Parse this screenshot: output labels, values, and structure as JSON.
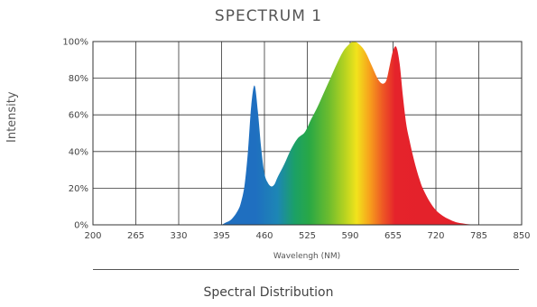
{
  "chart_data": {
    "type": "area",
    "title": "SPECTRUM 1",
    "xlabel": "Wavelengh (NM)",
    "ylabel": "Intensity",
    "xlim": [
      200,
      850
    ],
    "ylim": [
      0,
      100
    ],
    "x_ticks": [
      "200",
      "265",
      "330",
      "395",
      "460",
      "525",
      "590",
      "655",
      "720",
      "785",
      "850"
    ],
    "y_ticks": [
      "0%",
      "20%",
      "40%",
      "60%",
      "80%",
      "100%"
    ],
    "grid": true,
    "series": [
      {
        "x": [
          395,
          400,
          410,
          420,
          425,
          430,
          435,
          440,
          445,
          450,
          455,
          460,
          465,
          470,
          475,
          480,
          490,
          500,
          510,
          520,
          525,
          530,
          540,
          550,
          560,
          570,
          580,
          590,
          595,
          600,
          605,
          610,
          615,
          620,
          625,
          630,
          635,
          640,
          645,
          650,
          655,
          660,
          665,
          670,
          675,
          680,
          685,
          690,
          695,
          700,
          710,
          720,
          730,
          740,
          750,
          760,
          770,
          780,
          790
        ],
        "y": [
          0,
          1,
          3,
          8,
          13,
          22,
          40,
          65,
          76,
          62,
          42,
          28,
          23,
          21,
          22,
          26,
          33,
          41,
          47,
          50,
          53,
          57,
          64,
          72,
          80,
          88,
          95,
          99,
          100,
          99.5,
          98,
          96,
          93,
          89,
          85,
          81,
          78,
          77,
          79,
          87,
          95,
          97,
          88,
          70,
          55,
          46,
          38,
          31,
          25,
          20,
          13,
          8,
          5,
          3,
          1.5,
          0.8,
          0.3,
          0.1,
          0
        ]
      }
    ]
  },
  "footer": {
    "caption": "Spectral Distribution"
  }
}
